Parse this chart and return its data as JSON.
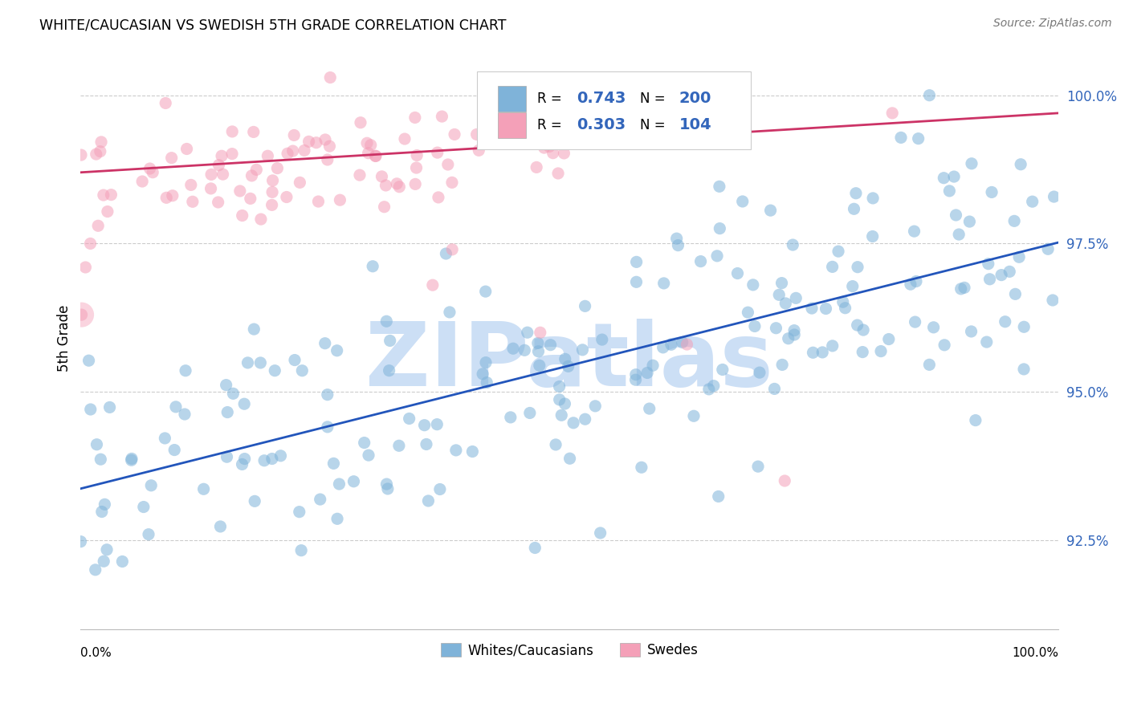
{
  "title": "WHITE/CAUCASIAN VS SWEDISH 5TH GRADE CORRELATION CHART",
  "source": "Source: ZipAtlas.com",
  "ylabel": "5th Grade",
  "ytick_labels": [
    "92.5%",
    "95.0%",
    "97.5%",
    "100.0%"
  ],
  "ytick_values": [
    0.925,
    0.95,
    0.975,
    1.0
  ],
  "xlim": [
    0.0,
    1.0
  ],
  "ylim": [
    0.91,
    1.008
  ],
  "blue_R": 0.743,
  "blue_N": 200,
  "pink_R": 0.303,
  "pink_N": 104,
  "blue_color": "#7fb3d9",
  "pink_color": "#f4a0b8",
  "blue_line_color": "#2255bb",
  "pink_line_color": "#cc3366",
  "watermark_text": "ZIPatlas",
  "watermark_color": "#ccdff5",
  "legend_label_blue": "Whites/Caucasians",
  "legend_label_pink": "Swedes",
  "background_color": "#ffffff",
  "grid_color": "#cccccc",
  "tick_color": "#3366bb"
}
